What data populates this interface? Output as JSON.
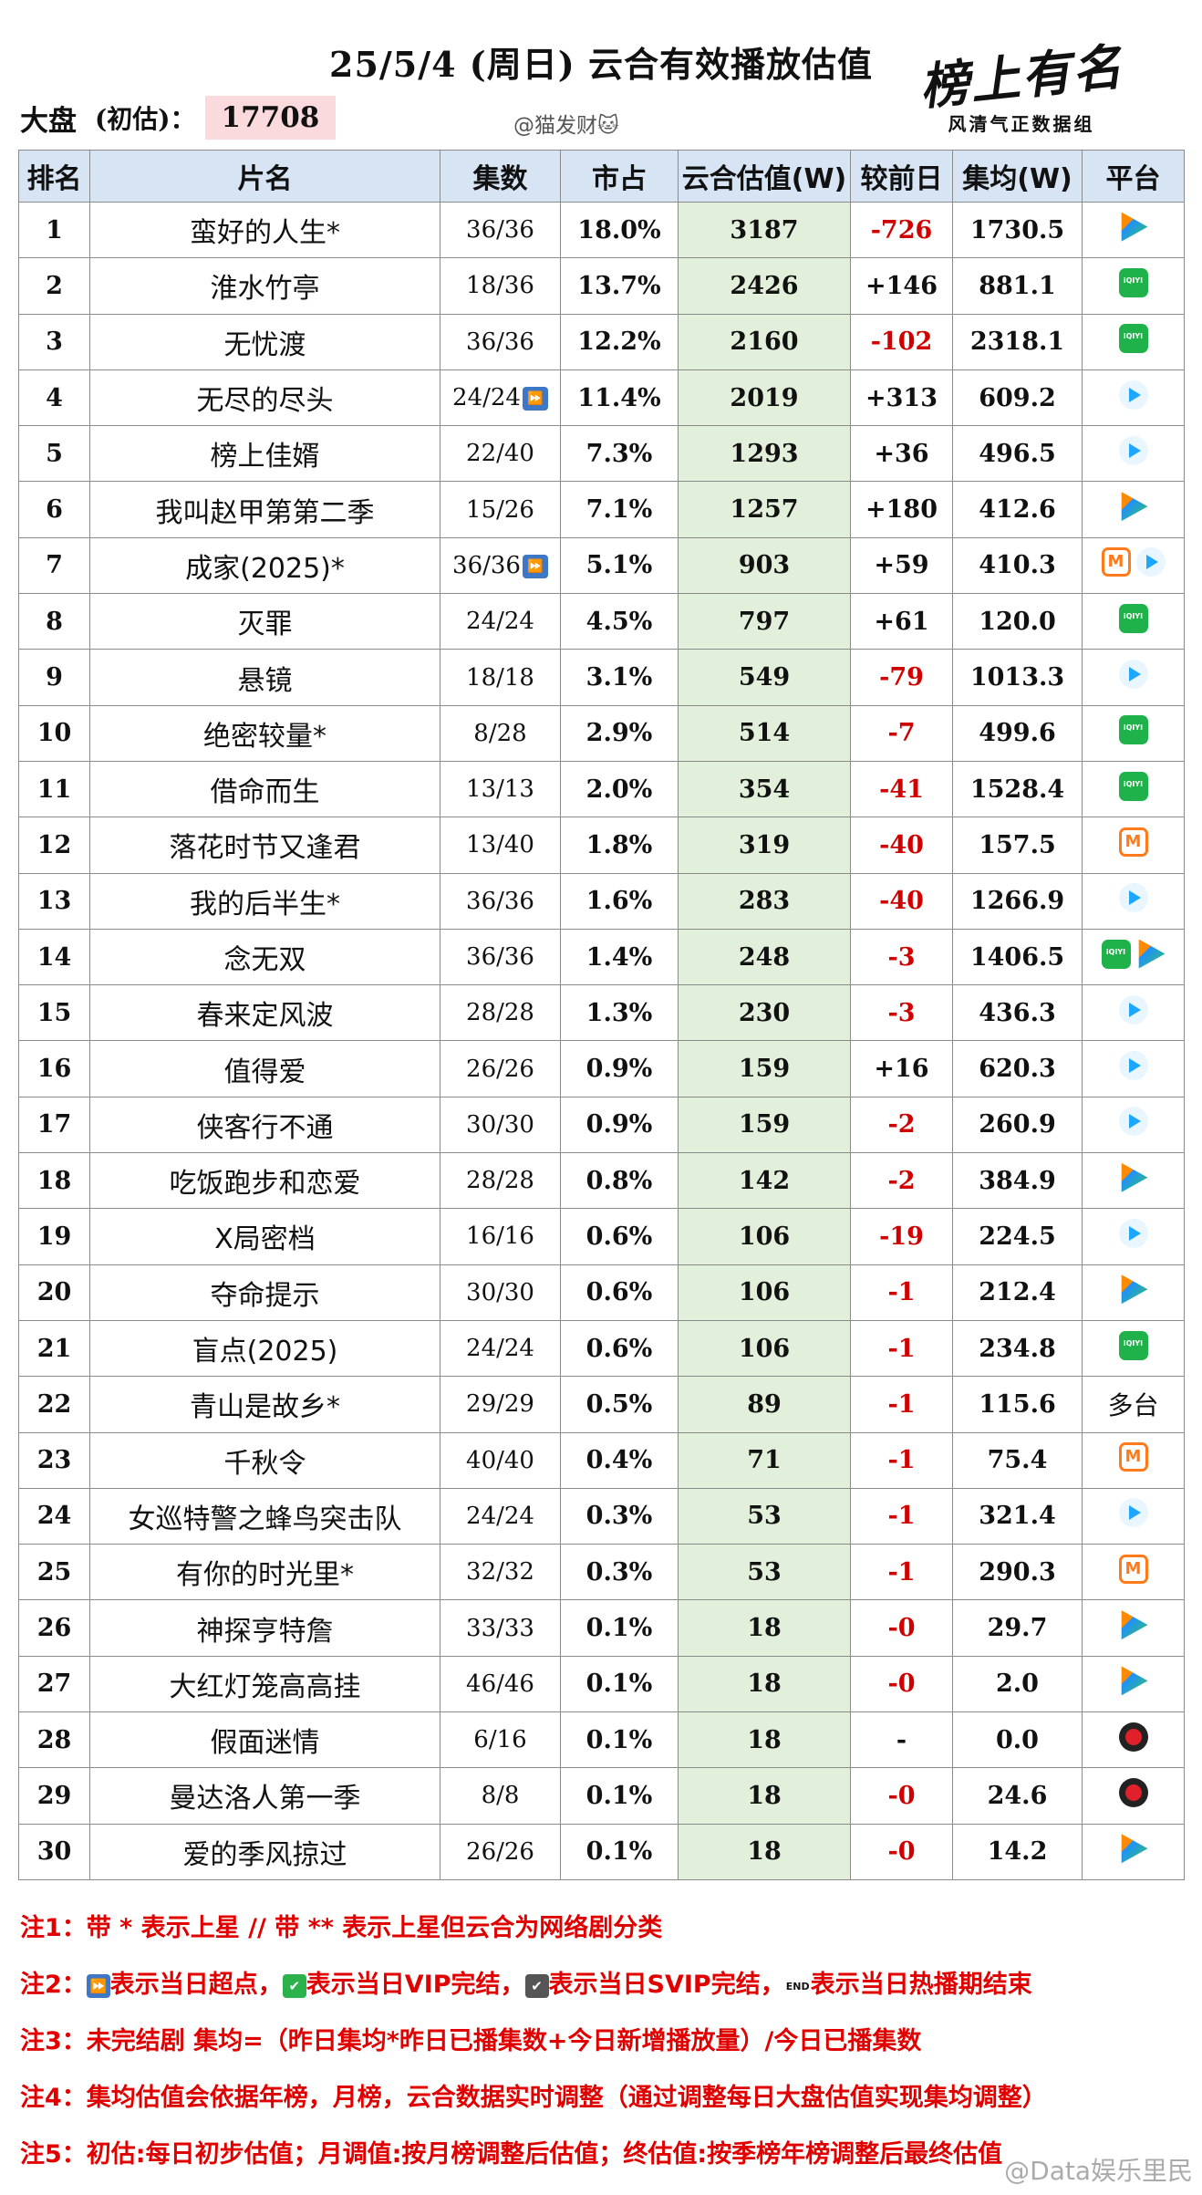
{
  "header": {
    "title": "25/5/4 (周日) 云合有效播放估值",
    "market_label": "大盘",
    "market_note": "(初估)：",
    "market_value": "17708",
    "handle": "@猫发财🐱",
    "logo_script": "榜上有名",
    "logo_sub": "风清气正数据组"
  },
  "table": {
    "columns": [
      "排名",
      "片名",
      "集数",
      "市占",
      "云合估值(W)",
      "较前日",
      "集均(W)",
      "平台"
    ],
    "rows": [
      {
        "rank": "1",
        "name": "蛮好的人生*",
        "eps": "36/36",
        "share": "18.0%",
        "est": "3187",
        "chg": "-726",
        "avg": "1730.5",
        "platforms": [
          "tencent-icon"
        ]
      },
      {
        "rank": "2",
        "name": "淮水竹亭",
        "eps": "18/36",
        "share": "13.7%",
        "est": "2426",
        "chg": "+146",
        "avg": "881.1",
        "platforms": [
          "iqiyi-icon"
        ]
      },
      {
        "rank": "3",
        "name": "无忧渡",
        "eps": "36/36",
        "share": "12.2%",
        "est": "2160",
        "chg": "-102",
        "avg": "2318.1",
        "platforms": [
          "iqiyi-icon"
        ]
      },
      {
        "rank": "4",
        "name": "无尽的尽头",
        "eps": "24/24",
        "eps_mark": "⏩",
        "share": "11.4%",
        "est": "2019",
        "chg": "+313",
        "avg": "609.2",
        "platforms": [
          "youku-icon"
        ]
      },
      {
        "rank": "5",
        "name": "榜上佳婿",
        "eps": "22/40",
        "share": "7.3%",
        "est": "1293",
        "chg": "+36",
        "avg": "496.5",
        "platforms": [
          "youku-icon"
        ]
      },
      {
        "rank": "6",
        "name": "我叫赵甲第第二季",
        "eps": "15/26",
        "share": "7.1%",
        "est": "1257",
        "chg": "+180",
        "avg": "412.6",
        "platforms": [
          "tencent-icon"
        ]
      },
      {
        "rank": "7",
        "name": "成家(2025)*",
        "eps": "36/36",
        "eps_mark": "⏩",
        "share": "5.1%",
        "est": "903",
        "chg": "+59",
        "avg": "410.3",
        "platforms": [
          "mango-icon",
          "youku-icon"
        ]
      },
      {
        "rank": "8",
        "name": "灭罪",
        "eps": "24/24",
        "share": "4.5%",
        "est": "797",
        "chg": "+61",
        "avg": "120.0",
        "platforms": [
          "iqiyi-icon"
        ]
      },
      {
        "rank": "9",
        "name": "悬镜",
        "eps": "18/18",
        "share": "3.1%",
        "est": "549",
        "chg": "-79",
        "avg": "1013.3",
        "platforms": [
          "youku-icon"
        ]
      },
      {
        "rank": "10",
        "name": "绝密较量*",
        "eps": "8/28",
        "share": "2.9%",
        "est": "514",
        "chg": "-7",
        "avg": "499.6",
        "platforms": [
          "iqiyi-icon"
        ]
      },
      {
        "rank": "11",
        "name": "借命而生",
        "eps": "13/13",
        "share": "2.0%",
        "est": "354",
        "chg": "-41",
        "avg": "1528.4",
        "platforms": [
          "iqiyi-icon"
        ]
      },
      {
        "rank": "12",
        "name": "落花时节又逢君",
        "eps": "13/40",
        "share": "1.8%",
        "est": "319",
        "chg": "-40",
        "avg": "157.5",
        "platforms": [
          "mango-icon"
        ]
      },
      {
        "rank": "13",
        "name": "我的后半生*",
        "eps": "36/36",
        "share": "1.6%",
        "est": "283",
        "chg": "-40",
        "avg": "1266.9",
        "platforms": [
          "youku-icon"
        ]
      },
      {
        "rank": "14",
        "name": "念无双",
        "eps": "36/36",
        "share": "1.4%",
        "est": "248",
        "chg": "-3",
        "avg": "1406.5",
        "platforms": [
          "iqiyi-icon",
          "tencent-icon"
        ]
      },
      {
        "rank": "15",
        "name": "春来定风波",
        "eps": "28/28",
        "share": "1.3%",
        "est": "230",
        "chg": "-3",
        "avg": "436.3",
        "platforms": [
          "youku-icon"
        ]
      },
      {
        "rank": "16",
        "name": "值得爱",
        "eps": "26/26",
        "share": "0.9%",
        "est": "159",
        "chg": "+16",
        "avg": "620.3",
        "platforms": [
          "youku-icon"
        ]
      },
      {
        "rank": "17",
        "name": "侠客行不通",
        "eps": "30/30",
        "share": "0.9%",
        "est": "159",
        "chg": "-2",
        "avg": "260.9",
        "platforms": [
          "youku-icon"
        ]
      },
      {
        "rank": "18",
        "name": "吃饭跑步和恋爱",
        "eps": "28/28",
        "share": "0.8%",
        "est": "142",
        "chg": "-2",
        "avg": "384.9",
        "platforms": [
          "tencent-icon"
        ]
      },
      {
        "rank": "19",
        "name": "X局密档",
        "eps": "16/16",
        "share": "0.6%",
        "est": "106",
        "chg": "-19",
        "avg": "224.5",
        "platforms": [
          "youku-icon"
        ]
      },
      {
        "rank": "20",
        "name": "夺命提示",
        "eps": "30/30",
        "share": "0.6%",
        "est": "106",
        "chg": "-1",
        "avg": "212.4",
        "platforms": [
          "tencent-icon"
        ]
      },
      {
        "rank": "21",
        "name": "盲点(2025)",
        "eps": "24/24",
        "share": "0.6%",
        "est": "106",
        "chg": "-1",
        "avg": "234.8",
        "platforms": [
          "iqiyi-icon"
        ]
      },
      {
        "rank": "22",
        "name": "青山是故乡*",
        "eps": "29/29",
        "share": "0.5%",
        "est": "89",
        "chg": "-1",
        "avg": "115.6",
        "platform_text": "多台"
      },
      {
        "rank": "23",
        "name": "千秋令",
        "eps": "40/40",
        "share": "0.4%",
        "est": "71",
        "chg": "-1",
        "avg": "75.4",
        "platforms": [
          "mango-icon"
        ]
      },
      {
        "rank": "24",
        "name": "女巡特警之蜂鸟突击队",
        "eps": "24/24",
        "share": "0.3%",
        "est": "53",
        "chg": "-1",
        "avg": "321.4",
        "platforms": [
          "youku-icon"
        ]
      },
      {
        "rank": "25",
        "name": "有你的时光里*",
        "eps": "32/32",
        "share": "0.3%",
        "est": "53",
        "chg": "-1",
        "avg": "290.3",
        "platforms": [
          "mango-icon"
        ]
      },
      {
        "rank": "26",
        "name": "神探亨特詹",
        "eps": "33/33",
        "share": "0.1%",
        "est": "18",
        "chg": "-0",
        "avg": "29.7",
        "platforms": [
          "tencent-icon"
        ]
      },
      {
        "rank": "27",
        "name": "大红灯笼高高挂",
        "eps": "46/46",
        "share": "0.1%",
        "est": "18",
        "chg": "-0",
        "avg": "2.0",
        "platforms": [
          "tencent-icon"
        ]
      },
      {
        "rank": "28",
        "name": "假面迷情",
        "eps": "6/16",
        "share": "0.1%",
        "est": "18",
        "chg": "-",
        "avg": "0.0",
        "platforms": [
          "mgtv-icon"
        ]
      },
      {
        "rank": "29",
        "name": "曼达洛人第一季",
        "eps": "8/8",
        "share": "0.1%",
        "est": "18",
        "chg": "-0",
        "avg": "24.6",
        "platforms": [
          "mgtv-icon"
        ]
      },
      {
        "rank": "30",
        "name": "爱的季风掠过",
        "eps": "26/26",
        "share": "0.1%",
        "est": "18",
        "chg": "-0",
        "avg": "14.2",
        "platforms": [
          "tencent-icon"
        ]
      }
    ]
  },
  "notes": {
    "n1": "注1：带 * 表示上星 // 带 ** 表示上星但云合为网络剧分类",
    "n2_a": "注2：",
    "n2_b": "表示当日超点，",
    "n2_c": "表示当日VIP完结，",
    "n2_d": "表示当日SVIP完结，",
    "n2_e": "表示当日热播期结束",
    "n3": "注3：未完结剧 集均=（昨日集均*昨日已播集数+今日新增播放量）/今日已播集数",
    "n4": "注4：集均估值会依据年榜，月榜，云合数据实时调整（通过调整每日大盘估值实现集均调整）",
    "n5": "注5：初估:每日初步估值；月调值:按月榜调整后估值；终估值:按季榜年榜调整后最终估值",
    "end_mark": "END"
  },
  "watermark": "@Data娱乐里民"
}
